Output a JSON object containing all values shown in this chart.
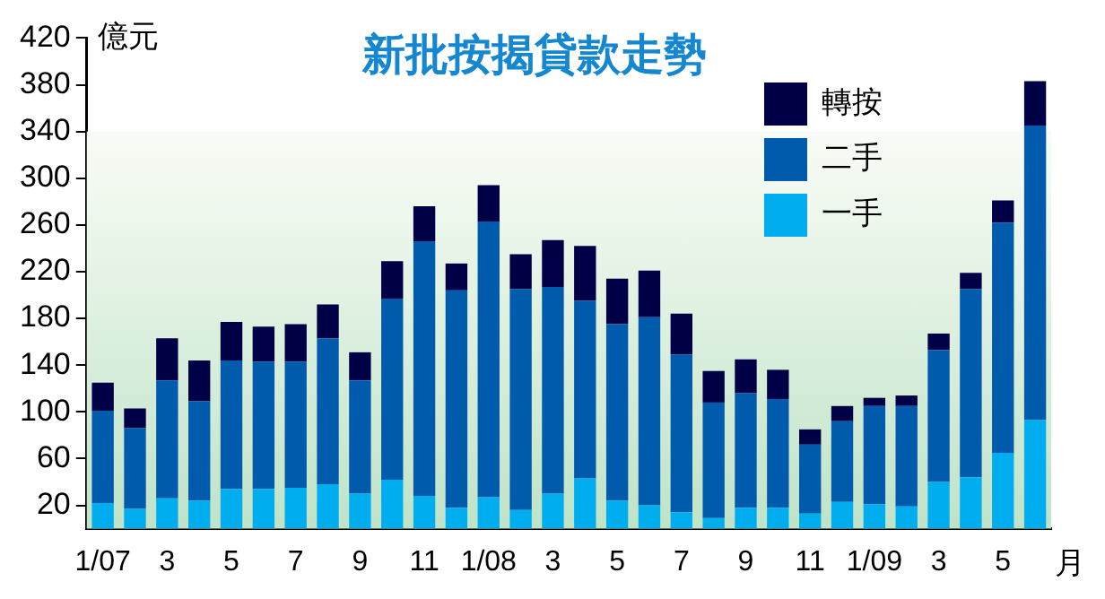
{
  "chart_data": {
    "type": "bar",
    "title": "新批按揭貸款走勢",
    "ylabel": "億元",
    "xlabel": "月",
    "stacked": true,
    "legend": "top right",
    "grid": false,
    "categories": [
      "1/07",
      null,
      "3",
      null,
      "5",
      null,
      "7",
      null,
      "9",
      null,
      "11",
      null,
      "1/08",
      null,
      "3",
      null,
      "5",
      null,
      "7",
      null,
      "9",
      null,
      "11",
      null,
      "1/09",
      null,
      "3",
      null,
      "5",
      null
    ],
    "ylim": [
      0,
      420
    ],
    "yticks": [
      20,
      60,
      100,
      140,
      180,
      220,
      260,
      300,
      340,
      380,
      420
    ],
    "series": [
      {
        "name": "一手",
        "color": "#00aeef",
        "values": [
          22,
          17,
          26,
          24,
          34,
          34,
          35,
          38,
          30,
          42,
          28,
          18,
          27,
          16,
          30,
          43,
          24,
          20,
          14,
          9,
          18,
          18,
          13,
          23,
          21,
          19,
          40,
          44,
          65,
          93
        ]
      },
      {
        "name": "二手",
        "color": "#005bac",
        "values": [
          79,
          69,
          101,
          85,
          110,
          109,
          108,
          125,
          97,
          155,
          218,
          186,
          236,
          189,
          177,
          152,
          151,
          161,
          135,
          99,
          98,
          93,
          59,
          69,
          84,
          86,
          113,
          161,
          197,
          252
        ]
      },
      {
        "name": "轉按",
        "color": "#000047",
        "values": [
          24,
          17,
          36,
          35,
          33,
          30,
          32,
          29,
          24,
          32,
          30,
          23,
          31,
          30,
          40,
          47,
          39,
          40,
          35,
          27,
          29,
          25,
          13,
          13,
          7,
          9,
          14,
          14,
          19,
          38
        ]
      }
    ]
  }
}
